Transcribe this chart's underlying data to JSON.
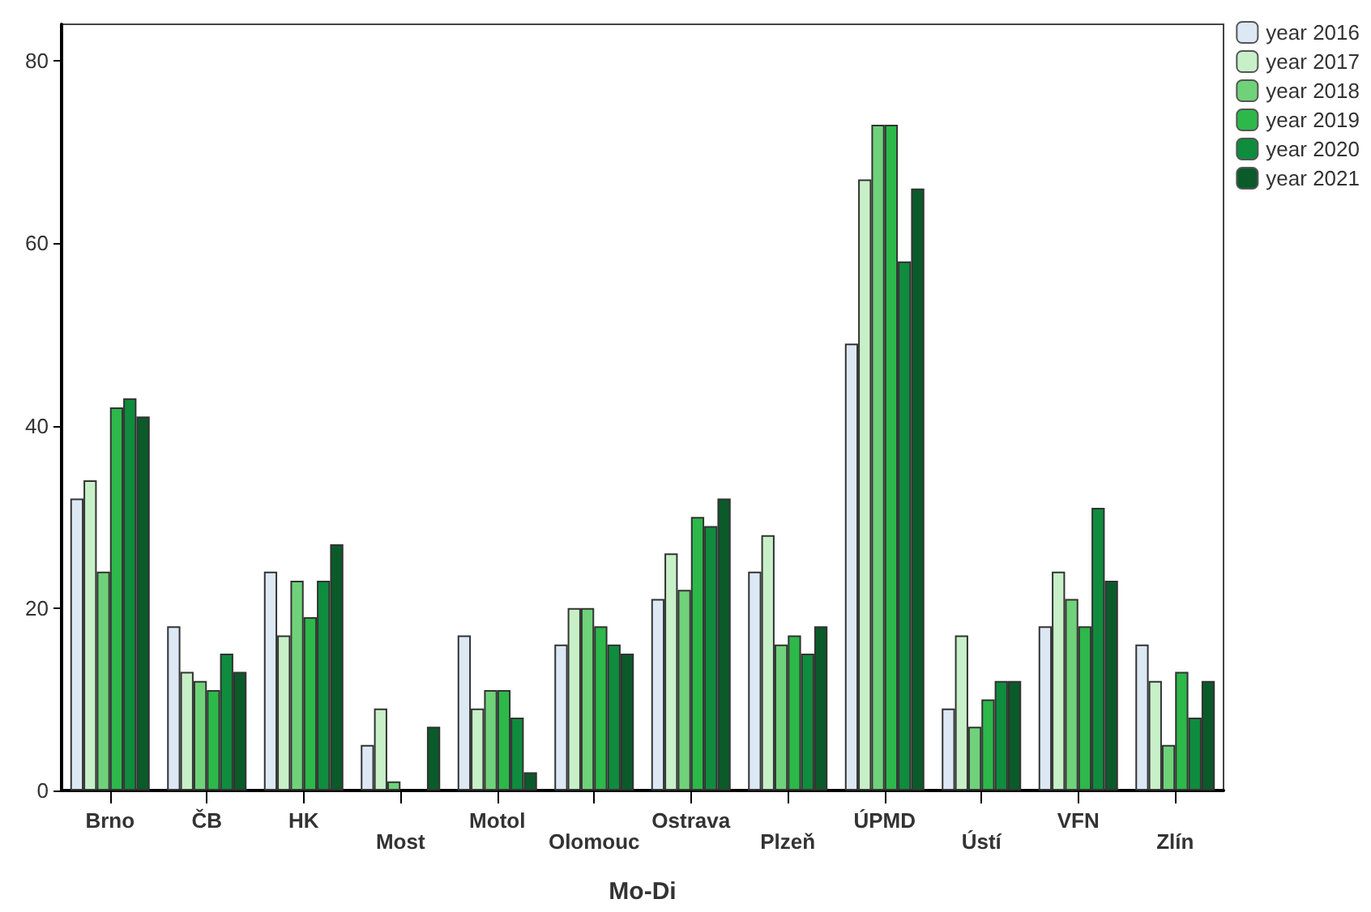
{
  "chart_data": {
    "type": "bar",
    "xlabel": "Mo-Di",
    "categories": [
      "Brno",
      "ČB",
      "HK",
      "Most",
      "Motol",
      "Olomouc",
      "Ostrava",
      "Plzeň",
      "ÚPMD",
      "Ústí",
      "VFN",
      "Zlín"
    ],
    "series": [
      {
        "name": "year 2016",
        "color": "#dde8f5",
        "values": [
          32,
          18,
          24,
          5,
          17,
          16,
          21,
          24,
          49,
          9,
          18,
          16
        ]
      },
      {
        "name": "year 2017",
        "color": "#c8f0c8",
        "values": [
          34,
          13,
          17,
          9,
          9,
          20,
          26,
          28,
          67,
          17,
          24,
          12
        ]
      },
      {
        "name": "year 2018",
        "color": "#6fd27a",
        "values": [
          24,
          12,
          23,
          1,
          11,
          20,
          22,
          16,
          73,
          7,
          21,
          5
        ]
      },
      {
        "name": "year 2019",
        "color": "#2db84a",
        "values": [
          42,
          11,
          19,
          0,
          11,
          18,
          30,
          17,
          73,
          10,
          18,
          13
        ]
      },
      {
        "name": "year 2020",
        "color": "#0f8c3e",
        "values": [
          43,
          15,
          23,
          0,
          8,
          16,
          29,
          15,
          58,
          12,
          31,
          8
        ]
      },
      {
        "name": "year 2021",
        "color": "#0b5a2a",
        "values": [
          41,
          13,
          27,
          7,
          2,
          15,
          32,
          18,
          66,
          12,
          23,
          12
        ]
      }
    ],
    "ylim": [
      0,
      84
    ],
    "yticks": [
      0,
      20,
      40,
      60,
      80
    ],
    "grid": false,
    "legend": "top right"
  }
}
